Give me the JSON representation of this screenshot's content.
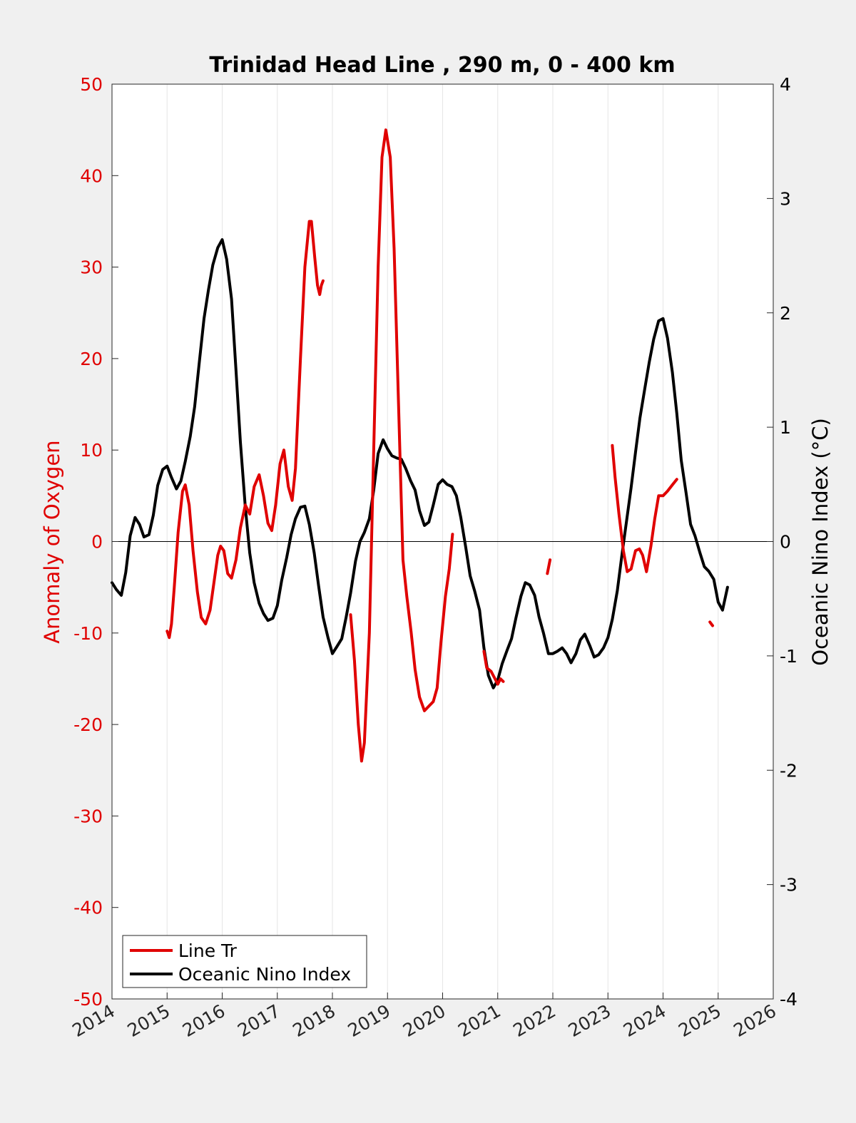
{
  "chart_data": {
    "type": "line",
    "title": "Trinidad Head Line , 290 m, 0 - 400 km",
    "xlabel": "",
    "ylabel_left": "Anomaly of Oxygen",
    "ylabel_right": "Oceanic Nino Index (°C)",
    "xlim": [
      2014,
      2026
    ],
    "ylim_left": [
      -50,
      50
    ],
    "ylim_right": [
      -4,
      4
    ],
    "x_ticks": [
      "2014",
      "2015",
      "2016",
      "2017",
      "2018",
      "2019",
      "2020",
      "2021",
      "2022",
      "2023",
      "2024",
      "2025",
      "2026"
    ],
    "y_ticks_left": [
      "50",
      "40",
      "30",
      "20",
      "10",
      "0",
      "-10",
      "-20",
      "-30",
      "-40",
      "-50"
    ],
    "y_ticks_right": [
      "4",
      "3",
      "2",
      "1",
      "0",
      "-1",
      "-2",
      "-3",
      "-4"
    ],
    "grid": "vertical",
    "legend_position": "bottom-left",
    "colors": {
      "oxygen": "#e00000",
      "oni": "#000000",
      "left_axis": "#e00000",
      "right_axis": "#000000"
    },
    "series": [
      {
        "name": "Line Tr",
        "axis": "left",
        "segments": [
          [
            [
              2015.0,
              -9.8
            ],
            [
              2015.04,
              -10.5
            ],
            [
              2015.08,
              -9
            ],
            [
              2015.13,
              -5
            ],
            [
              2015.2,
              1
            ],
            [
              2015.28,
              5.5
            ],
            [
              2015.33,
              6.2
            ],
            [
              2015.4,
              4
            ],
            [
              2015.47,
              -1
            ],
            [
              2015.55,
              -5.5
            ],
            [
              2015.62,
              -8.3
            ],
            [
              2015.7,
              -9
            ],
            [
              2015.78,
              -7.5
            ],
            [
              2015.85,
              -4.5
            ],
            [
              2015.92,
              -1.5
            ],
            [
              2015.97,
              -0.5
            ],
            [
              2016.03,
              -1
            ],
            [
              2016.1,
              -3.5
            ],
            [
              2016.17,
              -4
            ],
            [
              2016.25,
              -2
            ],
            [
              2016.33,
              1.5
            ],
            [
              2016.42,
              4
            ],
            [
              2016.5,
              3
            ],
            [
              2016.58,
              6
            ],
            [
              2016.67,
              7.3
            ],
            [
              2016.75,
              5
            ],
            [
              2016.83,
              2
            ],
            [
              2016.9,
              1.2
            ],
            [
              2016.97,
              4
            ],
            [
              2017.05,
              8.5
            ],
            [
              2017.12,
              10
            ],
            [
              2017.2,
              6
            ],
            [
              2017.27,
              4.5
            ],
            [
              2017.33,
              8
            ],
            [
              2017.42,
              20
            ],
            [
              2017.5,
              30
            ],
            [
              2017.58,
              35
            ],
            [
              2017.62,
              35
            ],
            [
              2017.68,
              31
            ],
            [
              2017.73,
              28
            ],
            [
              2017.77,
              27
            ],
            [
              2017.8,
              28
            ],
            [
              2017.83,
              28.5
            ]
          ],
          [
            [
              2018.33,
              -8
            ],
            [
              2018.4,
              -13
            ],
            [
              2018.47,
              -20
            ],
            [
              2018.53,
              -24
            ],
            [
              2018.58,
              -22
            ],
            [
              2018.67,
              -10
            ],
            [
              2018.75,
              10
            ],
            [
              2018.83,
              30
            ],
            [
              2018.9,
              42
            ],
            [
              2018.97,
              45
            ],
            [
              2019.05,
              42
            ],
            [
              2019.12,
              32
            ],
            [
              2019.2,
              15
            ],
            [
              2019.28,
              -2
            ],
            [
              2019.35,
              -6
            ],
            [
              2019.43,
              -10
            ],
            [
              2019.5,
              -14
            ],
            [
              2019.58,
              -17
            ],
            [
              2019.67,
              -18.5
            ],
            [
              2019.75,
              -18
            ],
            [
              2019.83,
              -17.5
            ],
            [
              2019.9,
              -16
            ],
            [
              2019.97,
              -11
            ],
            [
              2020.05,
              -6
            ],
            [
              2020.12,
              -3
            ],
            [
              2020.18,
              0.8
            ]
          ],
          [
            [
              2020.75,
              -12
            ],
            [
              2020.8,
              -13.8
            ],
            [
              2020.88,
              -14.2
            ],
            [
              2020.95,
              -15
            ],
            [
              2021.0,
              -15.6
            ],
            [
              2021.05,
              -15
            ],
            [
              2021.1,
              -15.3
            ]
          ],
          [
            [
              2021.9,
              -3.5
            ],
            [
              2021.95,
              -2
            ]
          ],
          [
            [
              2023.08,
              10.5
            ],
            [
              2023.13,
              7
            ],
            [
              2023.2,
              3
            ],
            [
              2023.28,
              -1
            ],
            [
              2023.35,
              -3.3
            ],
            [
              2023.42,
              -3
            ],
            [
              2023.5,
              -1
            ],
            [
              2023.57,
              -0.8
            ],
            [
              2023.63,
              -1.5
            ],
            [
              2023.7,
              -3.3
            ],
            [
              2023.78,
              -0.5
            ],
            [
              2023.85,
              2.5
            ],
            [
              2023.92,
              5
            ],
            [
              2024.0,
              5
            ],
            [
              2024.08,
              5.5
            ],
            [
              2024.17,
              6.2
            ],
            [
              2024.25,
              6.8
            ]
          ],
          [
            [
              2024.85,
              -8.8
            ],
            [
              2024.9,
              -9.2
            ]
          ]
        ]
      },
      {
        "name": "Oceanic Nino Index",
        "axis": "right",
        "segments": [
          [
            [
              2014.0,
              -0.36
            ],
            [
              2014.08,
              -0.42
            ],
            [
              2014.17,
              -0.47
            ],
            [
              2014.25,
              -0.27
            ],
            [
              2014.33,
              0.05
            ],
            [
              2014.42,
              0.21
            ],
            [
              2014.5,
              0.15
            ],
            [
              2014.58,
              0.04
            ],
            [
              2014.67,
              0.06
            ],
            [
              2014.75,
              0.23
            ],
            [
              2014.83,
              0.49
            ],
            [
              2014.92,
              0.63
            ],
            [
              2015.0,
              0.66
            ],
            [
              2015.08,
              0.56
            ],
            [
              2015.17,
              0.46
            ],
            [
              2015.25,
              0.53
            ],
            [
              2015.33,
              0.7
            ],
            [
              2015.42,
              0.92
            ],
            [
              2015.5,
              1.18
            ],
            [
              2015.58,
              1.55
            ],
            [
              2015.67,
              1.95
            ],
            [
              2015.75,
              2.2
            ],
            [
              2015.83,
              2.42
            ],
            [
              2015.92,
              2.57
            ],
            [
              2016.0,
              2.64
            ],
            [
              2016.08,
              2.47
            ],
            [
              2016.17,
              2.12
            ],
            [
              2016.25,
              1.5
            ],
            [
              2016.33,
              0.87
            ],
            [
              2016.42,
              0.3
            ],
            [
              2016.5,
              -0.1
            ],
            [
              2016.58,
              -0.36
            ],
            [
              2016.67,
              -0.54
            ],
            [
              2016.75,
              -0.63
            ],
            [
              2016.83,
              -0.69
            ],
            [
              2016.92,
              -0.67
            ],
            [
              2017.0,
              -0.56
            ],
            [
              2017.08,
              -0.34
            ],
            [
              2017.17,
              -0.14
            ],
            [
              2017.25,
              0.06
            ],
            [
              2017.33,
              0.2
            ],
            [
              2017.42,
              0.3
            ],
            [
              2017.5,
              0.31
            ],
            [
              2017.58,
              0.15
            ],
            [
              2017.67,
              -0.1
            ],
            [
              2017.75,
              -0.39
            ],
            [
              2017.83,
              -0.66
            ],
            [
              2017.92,
              -0.84
            ],
            [
              2018.0,
              -0.98
            ],
            [
              2018.08,
              -0.92
            ],
            [
              2018.17,
              -0.85
            ],
            [
              2018.25,
              -0.66
            ],
            [
              2018.33,
              -0.45
            ],
            [
              2018.42,
              -0.17
            ],
            [
              2018.5,
              0.0
            ],
            [
              2018.58,
              0.08
            ],
            [
              2018.67,
              0.2
            ],
            [
              2018.75,
              0.45
            ],
            [
              2018.83,
              0.77
            ],
            [
              2018.92,
              0.89
            ],
            [
              2019.0,
              0.81
            ],
            [
              2019.08,
              0.75
            ],
            [
              2019.17,
              0.73
            ],
            [
              2019.25,
              0.72
            ],
            [
              2019.33,
              0.64
            ],
            [
              2019.42,
              0.53
            ],
            [
              2019.5,
              0.45
            ],
            [
              2019.58,
              0.27
            ],
            [
              2019.67,
              0.14
            ],
            [
              2019.75,
              0.17
            ],
            [
              2019.83,
              0.32
            ],
            [
              2019.92,
              0.5
            ],
            [
              2020.0,
              0.54
            ],
            [
              2020.08,
              0.5
            ],
            [
              2020.17,
              0.48
            ],
            [
              2020.25,
              0.4
            ],
            [
              2020.33,
              0.21
            ],
            [
              2020.42,
              -0.05
            ],
            [
              2020.5,
              -0.3
            ],
            [
              2020.58,
              -0.43
            ],
            [
              2020.67,
              -0.6
            ],
            [
              2020.75,
              -0.93
            ],
            [
              2020.83,
              -1.17
            ],
            [
              2020.92,
              -1.28
            ],
            [
              2021.0,
              -1.21
            ],
            [
              2021.08,
              -1.07
            ],
            [
              2021.17,
              -0.95
            ],
            [
              2021.25,
              -0.85
            ],
            [
              2021.33,
              -0.67
            ],
            [
              2021.42,
              -0.48
            ],
            [
              2021.5,
              -0.36
            ],
            [
              2021.58,
              -0.38
            ],
            [
              2021.67,
              -0.47
            ],
            [
              2021.75,
              -0.66
            ],
            [
              2021.83,
              -0.8
            ],
            [
              2021.92,
              -0.98
            ],
            [
              2022.0,
              -0.98
            ],
            [
              2022.08,
              -0.96
            ],
            [
              2022.17,
              -0.93
            ],
            [
              2022.25,
              -0.98
            ],
            [
              2022.33,
              -1.06
            ],
            [
              2022.42,
              -0.98
            ],
            [
              2022.5,
              -0.86
            ],
            [
              2022.58,
              -0.81
            ],
            [
              2022.67,
              -0.91
            ],
            [
              2022.75,
              -1.01
            ],
            [
              2022.83,
              -0.99
            ],
            [
              2022.92,
              -0.93
            ],
            [
              2023.0,
              -0.84
            ],
            [
              2023.08,
              -0.68
            ],
            [
              2023.17,
              -0.43
            ],
            [
              2023.25,
              -0.13
            ],
            [
              2023.33,
              0.15
            ],
            [
              2023.42,
              0.47
            ],
            [
              2023.5,
              0.78
            ],
            [
              2023.58,
              1.08
            ],
            [
              2023.67,
              1.34
            ],
            [
              2023.75,
              1.57
            ],
            [
              2023.83,
              1.77
            ],
            [
              2023.92,
              1.93
            ],
            [
              2024.0,
              1.95
            ],
            [
              2024.08,
              1.78
            ],
            [
              2024.17,
              1.48
            ],
            [
              2024.25,
              1.12
            ],
            [
              2024.33,
              0.71
            ],
            [
              2024.42,
              0.42
            ],
            [
              2024.5,
              0.15
            ],
            [
              2024.58,
              0.05
            ],
            [
              2024.67,
              -0.1
            ],
            [
              2024.75,
              -0.22
            ],
            [
              2024.83,
              -0.26
            ],
            [
              2024.92,
              -0.33
            ],
            [
              2025.0,
              -0.53
            ],
            [
              2025.08,
              -0.6
            ],
            [
              2025.17,
              -0.4
            ]
          ]
        ]
      }
    ]
  }
}
